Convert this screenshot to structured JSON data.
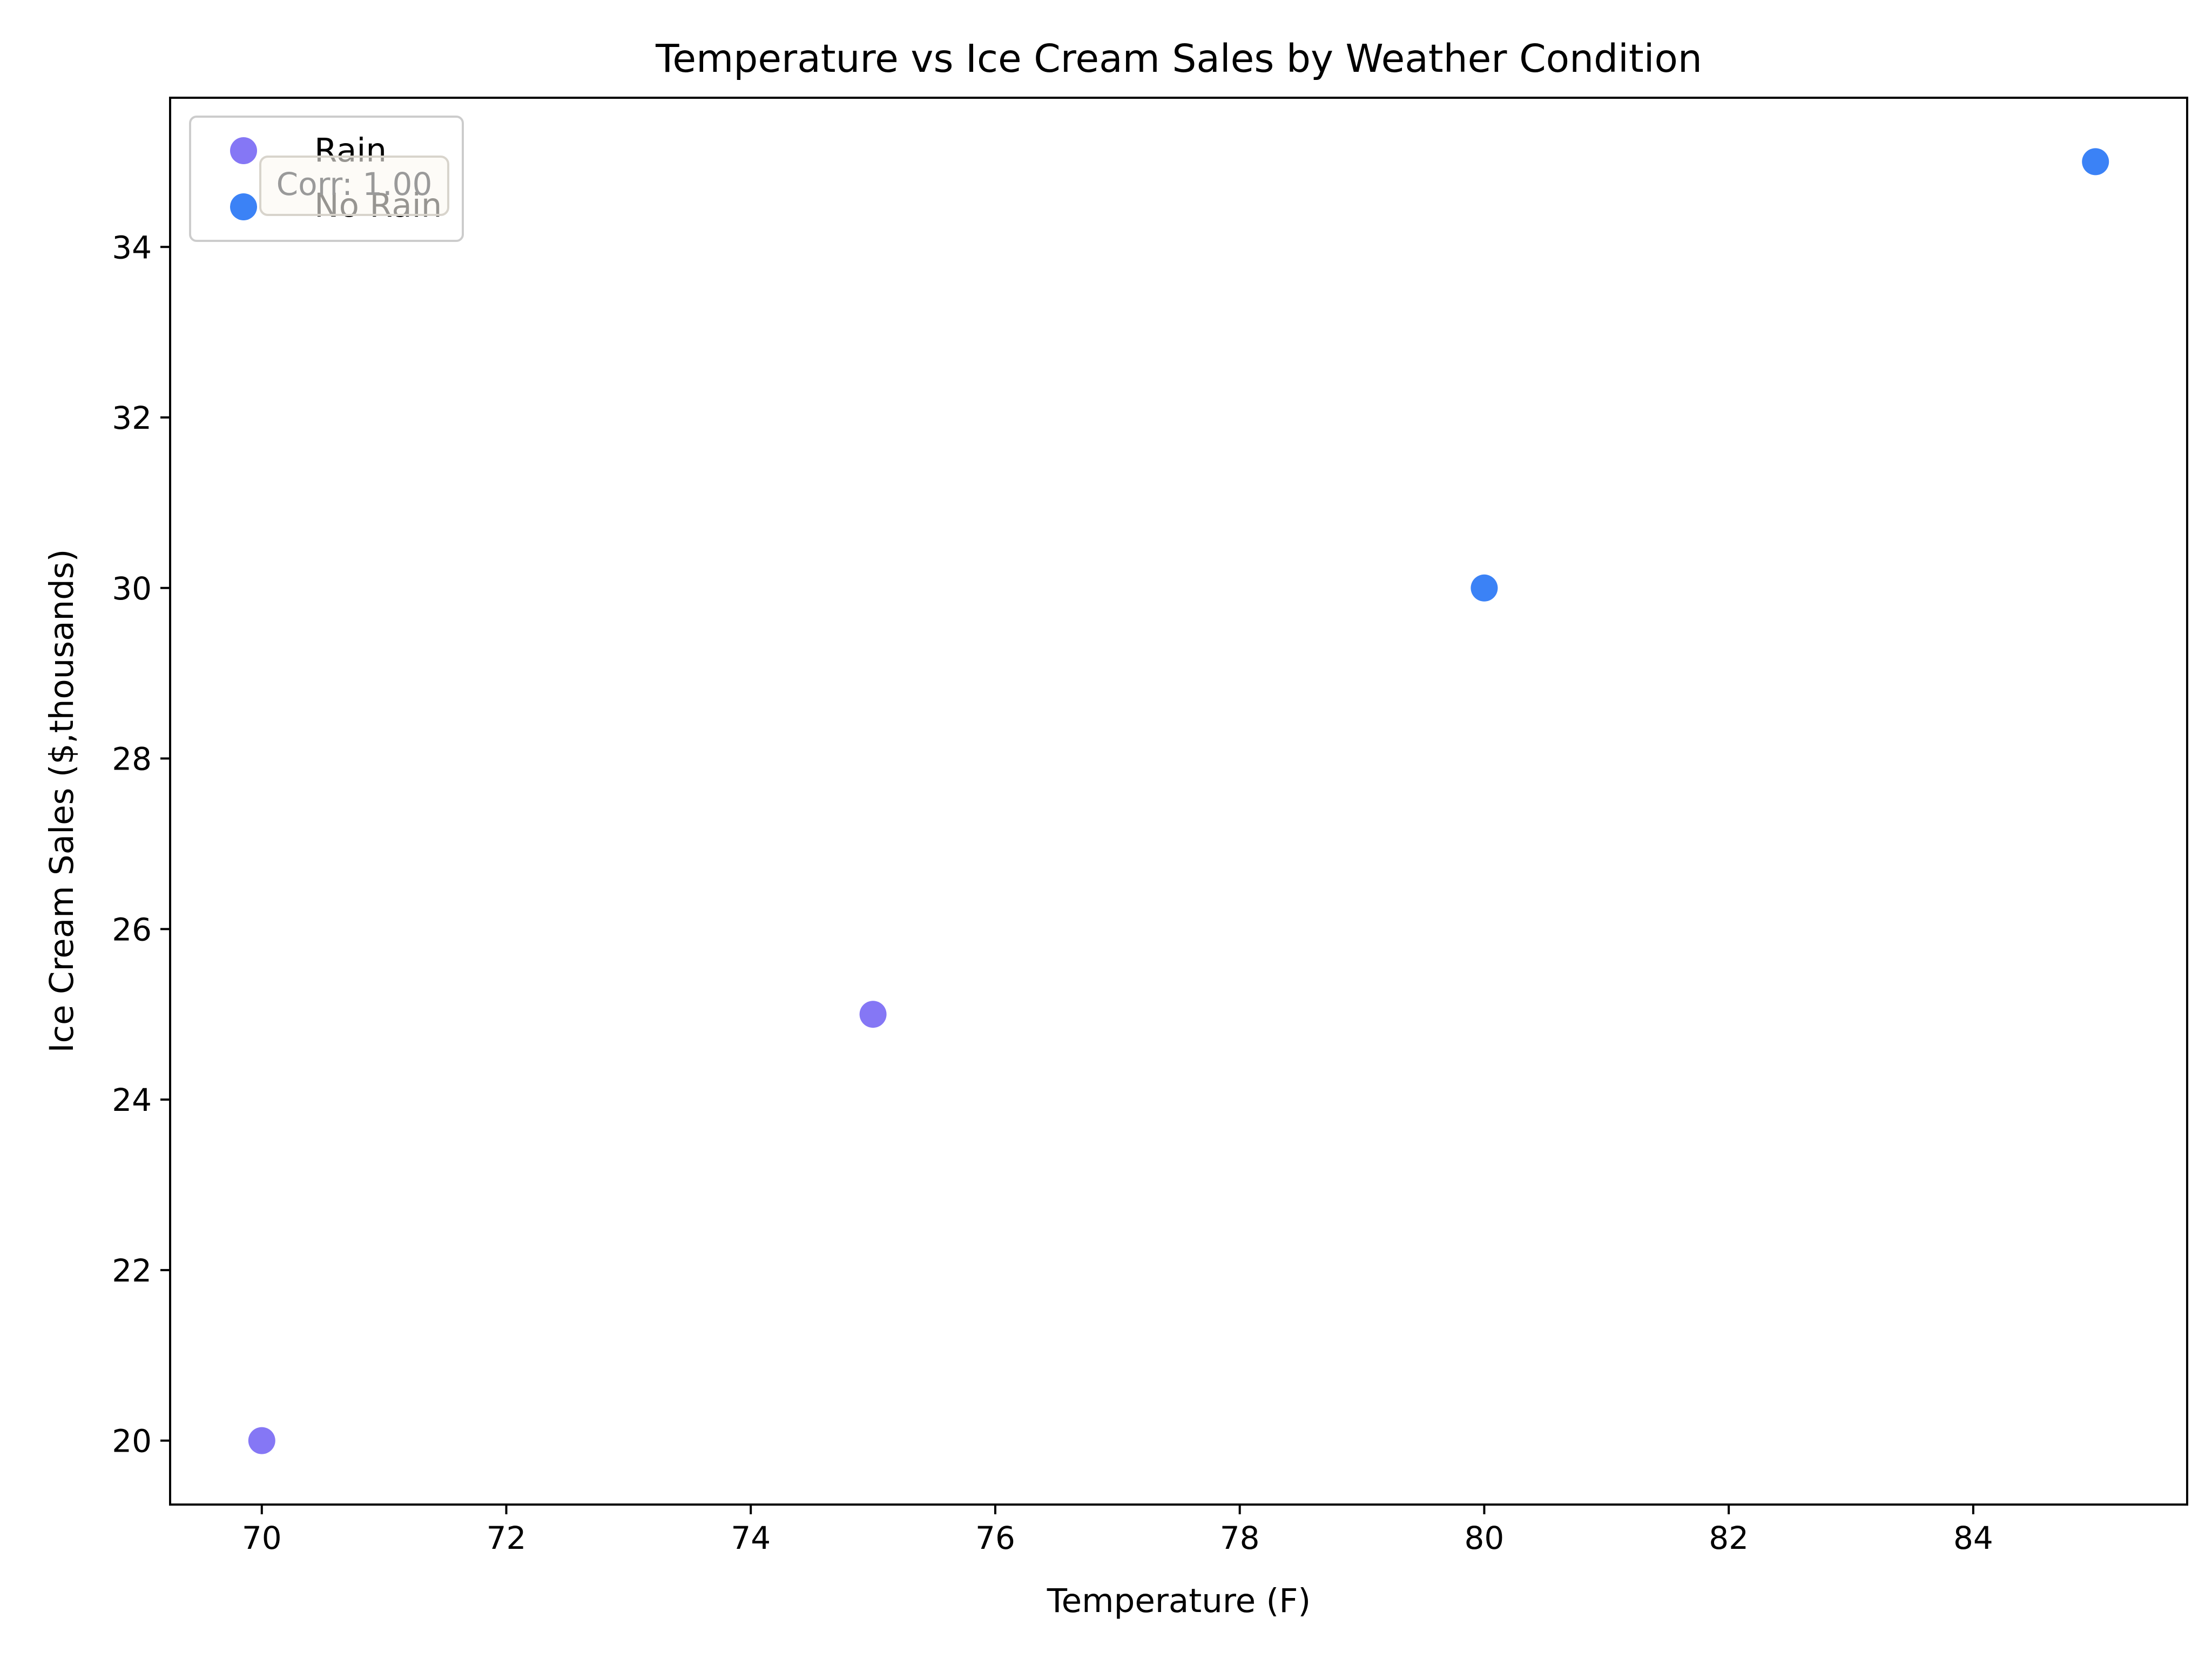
{
  "chart_data": {
    "type": "scatter",
    "title": "Temperature vs Ice Cream Sales by Weather Condition",
    "xlabel": "Temperature (F)",
    "ylabel": "Ice Cream Sales ($,thousands)",
    "xlim": [
      69.25,
      85.75
    ],
    "ylim": [
      19.25,
      35.75
    ],
    "xticks": [
      70,
      72,
      74,
      76,
      78,
      80,
      82,
      84
    ],
    "yticks": [
      20,
      22,
      24,
      26,
      28,
      30,
      32,
      34
    ],
    "grid": false,
    "legend_position": "top-left",
    "annotation": "Corr: 1.00",
    "series": [
      {
        "name": "Rain",
        "color": "#8577f5",
        "points": [
          {
            "x": 70,
            "y": 20
          },
          {
            "x": 75,
            "y": 25
          }
        ]
      },
      {
        "name": "No Rain",
        "color": "#3b82f6",
        "points": [
          {
            "x": 80,
            "y": 30
          },
          {
            "x": 85,
            "y": 35
          }
        ]
      }
    ]
  }
}
